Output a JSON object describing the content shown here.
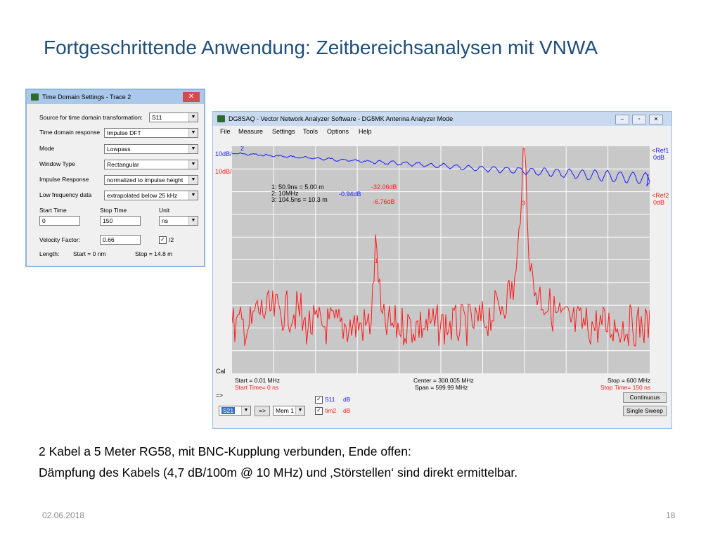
{
  "slide": {
    "title": "Fortgeschrittende Anwendung: Zeitbereichsanalysen mit VNWA",
    "caption_line1": "2 Kabel a 5 Meter RG58, mit BNC-Kupplung verbunden, Ende offen:",
    "caption_line2": "Dämpfung des Kabels (4,7 dB/100m @ 10 MHz) und ‚Störstellen‘ sind direkt ermittelbar.",
    "date": "02.06.2018",
    "page": "18"
  },
  "tds": {
    "title": "Time Domain Settings - Trace 2",
    "close": "✕",
    "source_label": "Source for time domain transformation:",
    "source_value": "S11",
    "response_label": "Time domain response",
    "response_value": "Impulse DFT",
    "mode_label": "Mode",
    "mode_value": "Lowpass",
    "window_label": "Window Type",
    "window_value": "Rectangular",
    "impulse_label": "Impulse Response",
    "impulse_value": "normalized to impulse height",
    "lowfreq_label": "Low frequency data",
    "lowfreq_value": "extrapolated below 25 kHz",
    "start_label": "Start Time",
    "start_value": "0",
    "stop_label": "Stop Time",
    "stop_value": "150",
    "unit_label": "Unit",
    "unit_value": "ns",
    "vf_label": "Velocity Factor:",
    "vf_value": "0.66",
    "half_label": "/2",
    "half_checked": "✓",
    "length_label": "Length:",
    "length_start": "Start = 0 nm",
    "length_stop": "Stop = 14.8 m"
  },
  "vnwa": {
    "title": "DG8SAQ - Vector Network Analyzer Software - DG5MK Antenna Analyzer Mode",
    "menu": [
      "File",
      "Measure",
      "Settings",
      "Tools",
      "Options",
      "Help"
    ],
    "left_ref_blue": "10dB/",
    "left_ref_red": "10dB/",
    "right_ref1": "<Ref1",
    "right_ref1_val": "0dB",
    "right_ref2": "<Ref2",
    "right_ref2_val": "0dB",
    "marker_lines": [
      "1:   50.9ns = 5.00 m",
      "2:   10MHz",
      "3:   104.5ns = 10.3 m"
    ],
    "marker_blue_val": "-0.94dB",
    "marker_red_val1": "-32.06dB",
    "marker_red_val3": "-6.76dB",
    "cal": "Cal",
    "start_freq": "Start = 0.01 MHz",
    "start_time": "Start Time= 0 ns",
    "center": "Center = 300.005 MHz",
    "span": "Span = 599.99 MHz",
    "stop_freq": "Stop = 600 MHz",
    "stop_time": "Stop Time= 150 ns",
    "arrow_label": "=>",
    "s11_label": "S11",
    "s11_unit": "dB",
    "tim2_label": "tim2",
    "tim2_unit": "dB",
    "param_select": "S21",
    "arrow_btn": "=>",
    "mem_select": "Mem 1",
    "continuous": "Continuous",
    "single_sweep": "Single Sweep",
    "marker1": "1",
    "marker2": "2",
    "marker3": "3",
    "colors": {
      "blue_trace": "#1a1aff",
      "red_trace": "#ff1a1a",
      "plot_bg": "#c8c8c8"
    }
  }
}
